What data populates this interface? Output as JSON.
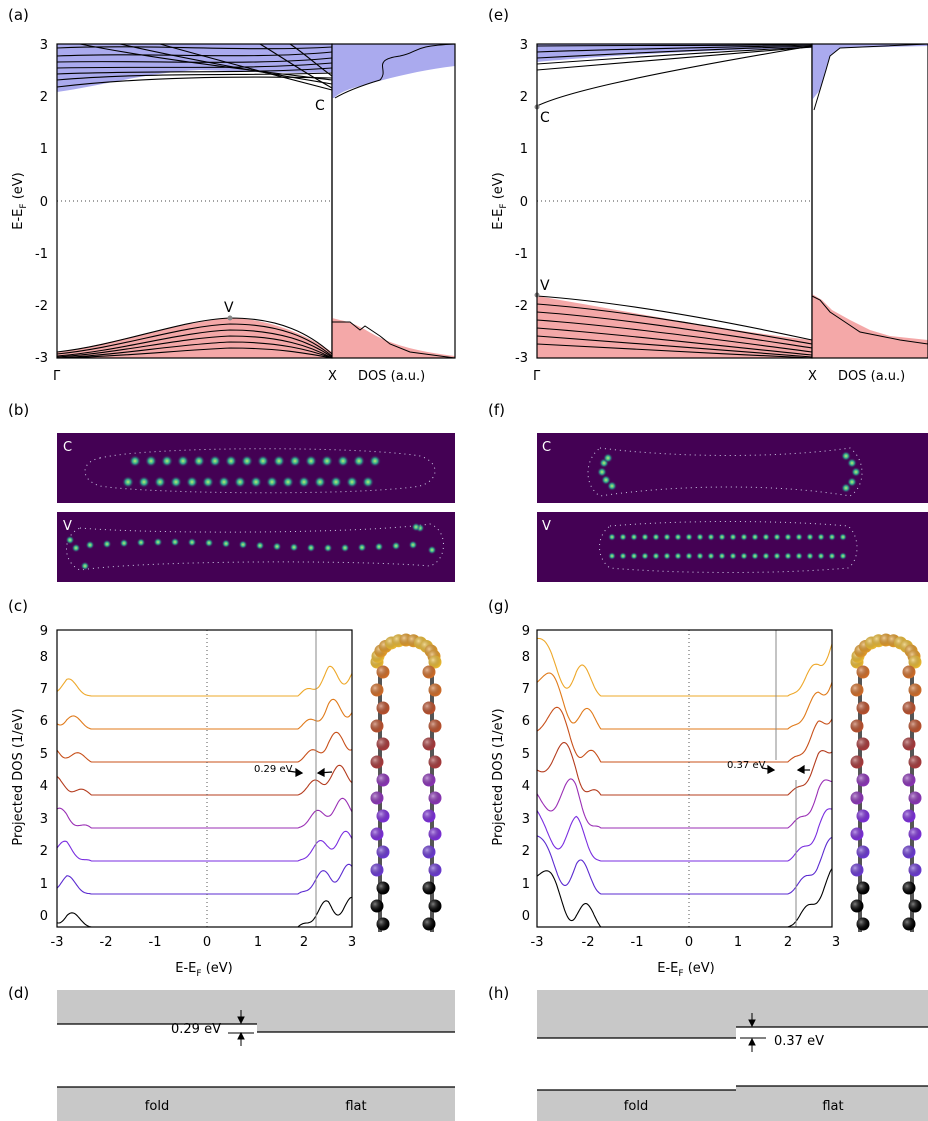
{
  "panel_labels": {
    "a": "(a)",
    "b": "(b)",
    "c": "(c)",
    "d": "(d)",
    "e": "(e)",
    "f": "(f)",
    "g": "(g)",
    "h": "(h)"
  },
  "band_axis": {
    "ylabel_main": "E-E",
    "ylabel_sub": "F",
    "ylabel_unit": " (eV)",
    "yticks": [
      "3",
      "2",
      "1",
      "0",
      "-1",
      "-2",
      "-3"
    ],
    "gamma": "Γ",
    "x_point": "X",
    "dos_label": "DOS (a.u.)",
    "c_label": "C",
    "v_label": "V"
  },
  "pdos_axis": {
    "ylabel": "Projected DOS (1/eV)",
    "xlabel_main": "E-E",
    "xlabel_sub": "F",
    "xlabel_unit": " (eV)",
    "xticks": [
      "-3",
      "-2",
      "-1",
      "0",
      "1",
      "2",
      "3"
    ],
    "yticks": [
      "0",
      "1",
      "2",
      "3",
      "4",
      "5",
      "6",
      "7",
      "8",
      "9"
    ]
  },
  "orbital_labels": {
    "c": "C",
    "v": "V"
  },
  "gap_labels": {
    "left": "0.29 eV",
    "right": "0.37 eV"
  },
  "alignment_labels": {
    "fold": "fold",
    "flat": "flat"
  },
  "colors": {
    "conduction_fill": "#aaaaee",
    "valence_fill": "#f4a8a8",
    "wavefunction_bg": "#440154",
    "wavefunction_glow": "#3fbf8f",
    "band_gray": "#c8c8c8",
    "curve_palette": [
      "#000000",
      "#5b2bd0",
      "#7a2ee0",
      "#9a2fb5",
      "#b43c1e",
      "#c8501a",
      "#e07a1a",
      "#eea82a"
    ]
  },
  "chart_data": [
    {
      "panel": "a",
      "type": "line",
      "title": "",
      "ylabel": "E-E_F (eV)",
      "ylim": [
        -3,
        3
      ],
      "annotations": [
        {
          "label": "C",
          "energy": 2.0
        },
        {
          "label": "V",
          "energy": -2.25
        }
      ],
      "conduction_band_min": 2.0,
      "valence_band_max": -2.25
    },
    {
      "panel": "e",
      "type": "line",
      "title": "",
      "ylabel": "E-E_F (eV)",
      "ylim": [
        -3,
        3
      ],
      "annotations": [
        {
          "label": "C",
          "energy": 1.8
        },
        {
          "label": "V",
          "energy": -1.8
        }
      ],
      "conduction_band_min": 1.8,
      "valence_band_max": -1.8
    },
    {
      "panel": "c",
      "type": "line",
      "xlabel": "E-E_F (eV)",
      "ylabel": "Projected DOS (1/eV)",
      "xlim": [
        -3,
        3
      ],
      "ylim": [
        0,
        9
      ],
      "series_offsets": [
        0,
        1,
        2,
        3,
        4,
        5,
        6,
        7
      ],
      "gap_edges": {
        "left": -2.3,
        "right": 1.9
      },
      "annotation": "0.29 eV"
    },
    {
      "panel": "g",
      "type": "line",
      "xlabel": "E-E_F (eV)",
      "ylabel": "Projected DOS (1/eV)",
      "xlim": [
        -3,
        3
      ],
      "ylim": [
        0,
        9
      ],
      "series_offsets": [
        0,
        1,
        2,
        3,
        4,
        5,
        6,
        7
      ],
      "gap_edges": {
        "left": -1.7,
        "right": 2.1
      },
      "annotation": "0.37 eV"
    },
    {
      "panel": "d",
      "type": "bar",
      "categories": [
        "fold",
        "flat"
      ],
      "band_offset_eV": 0.29
    },
    {
      "panel": "h",
      "type": "bar",
      "categories": [
        "fold",
        "flat"
      ],
      "band_offset_eV": 0.37
    }
  ]
}
